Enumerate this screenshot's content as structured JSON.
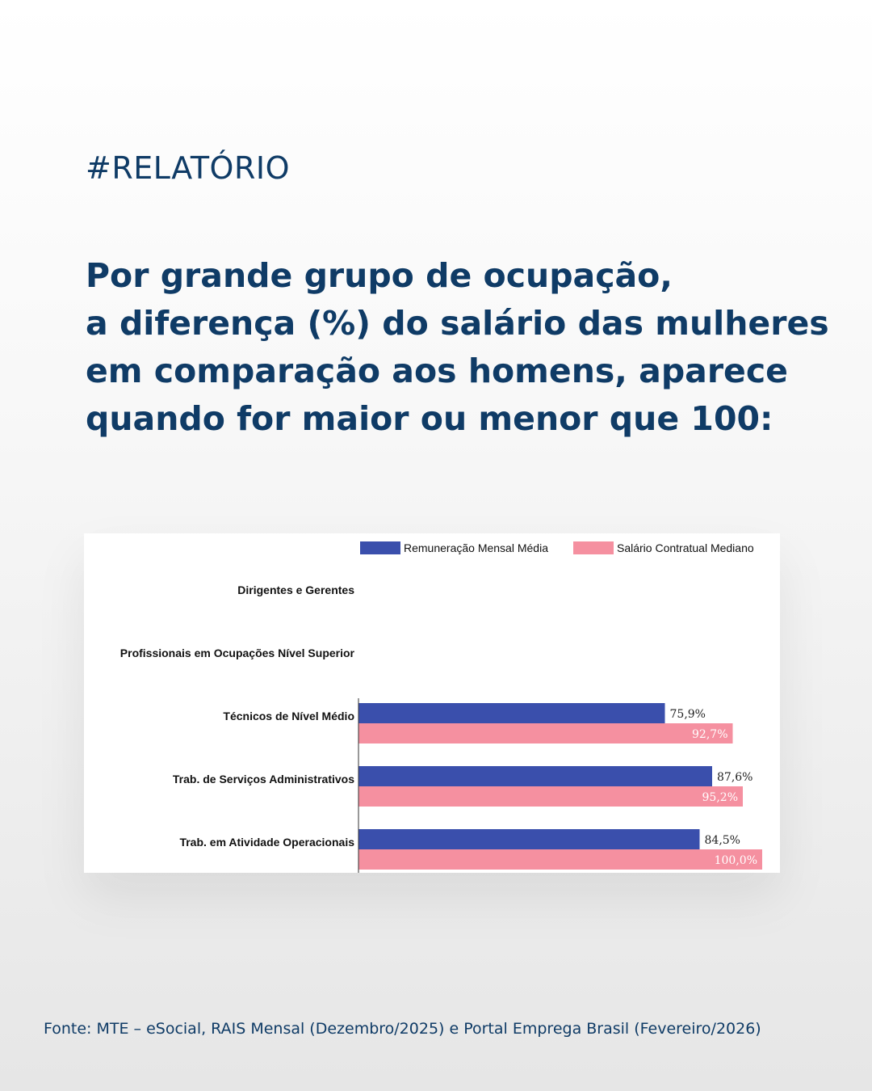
{
  "tag": "#RELATÓRIO",
  "headline": {
    "lines": [
      "Por grande grupo de ocupação,",
      "a diferença (%) do salário das mulheres",
      "em comparação aos homens, aparece",
      "quando for maior ou menor que 100:"
    ]
  },
  "chart_data": {
    "type": "bar",
    "orientation": "horizontal",
    "categories": [
      "Dirigentes e Gerentes",
      "Profissionais em Ocupações Nível Superior",
      "Técnicos de Nível Médio",
      "Trab. de Serviços Administrativos",
      "Trab. em Atividade Operacionais"
    ],
    "series": [
      {
        "name": "Remuneração Mensal Média",
        "color": "#3a4fac",
        "values": [
          null,
          null,
          75.9,
          87.6,
          84.5
        ],
        "labels": [
          "",
          "",
          "75,9%",
          "87,6%",
          "84,5%"
        ]
      },
      {
        "name": "Salário Contratual Mediano",
        "color": "#f590a0",
        "values": [
          null,
          null,
          92.7,
          95.2,
          100.0
        ],
        "labels": [
          "",
          "",
          "92,7%",
          "95,2%",
          "100,0%"
        ]
      }
    ],
    "xlim": [
      0,
      100
    ],
    "grid": false,
    "legend": "top-right"
  },
  "source": "Fonte: MTE – eSocial, RAIS Mensal (Dezembro/2025) e Portal Emprega Brasil (Fevereiro/2026)"
}
